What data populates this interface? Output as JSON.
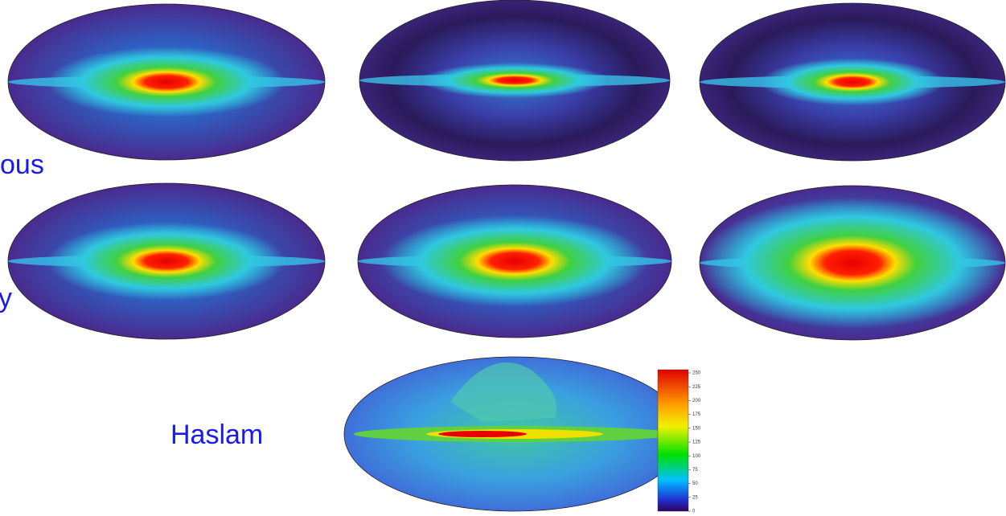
{
  "labels": {
    "row1": "ous",
    "row2": "y",
    "haslam": "Haslam"
  },
  "colorbar": {
    "ticks": [
      250,
      225,
      200,
      175,
      150,
      125,
      100,
      75,
      50,
      25,
      0
    ]
  }
}
